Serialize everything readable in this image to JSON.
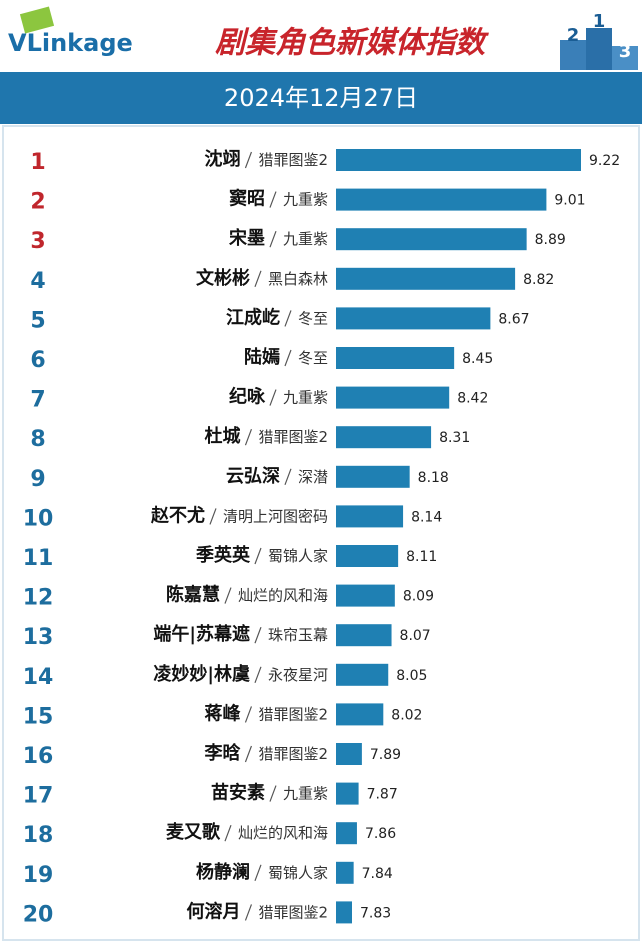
{
  "chart_data": {
    "type": "bar",
    "logo": "VLinkage",
    "title": "剧集角色新媒体指数",
    "subtitle": "2024年12月27日",
    "podium": [
      2,
      1,
      3
    ],
    "ranks": [
      1,
      2,
      3,
      4,
      5,
      6,
      7,
      8,
      9,
      10,
      11,
      12,
      13,
      14,
      15,
      16,
      17,
      18,
      19,
      20
    ],
    "categories": [
      "沈翊",
      "窦昭",
      "宋墨",
      "文彬彬",
      "江成屹",
      "陆嫣",
      "纪咏",
      "杜城",
      "云弘深",
      "赵不尤",
      "季英英",
      "陈嘉慧",
      "端午|苏幕遮",
      "凌妙妙|林虞",
      "蒋峰",
      "李晗",
      "苗安素",
      "麦又歌",
      "杨静澜",
      "何溶月"
    ],
    "shows": [
      "猎罪图鉴2",
      "九重紫",
      "九重紫",
      "黑白森林",
      "冬至",
      "冬至",
      "九重紫",
      "猎罪图鉴2",
      "深潜",
      "清明上河图密码",
      "蜀锦人家",
      "灿烂的风和海",
      "珠帘玉幕",
      "永夜星河",
      "猎罪图鉴2",
      "猎罪图鉴2",
      "九重紫",
      "灿烂的风和海",
      "蜀锦人家",
      "猎罪图鉴2"
    ],
    "values": [
      9.22,
      9.01,
      8.89,
      8.82,
      8.67,
      8.45,
      8.42,
      8.31,
      8.18,
      8.14,
      8.11,
      8.09,
      8.07,
      8.05,
      8.02,
      7.89,
      7.87,
      7.86,
      7.84,
      7.83
    ],
    "color": "#1f80b3",
    "top_rank_color": "#c0262c",
    "rank_color": "#1d6d9e"
  }
}
